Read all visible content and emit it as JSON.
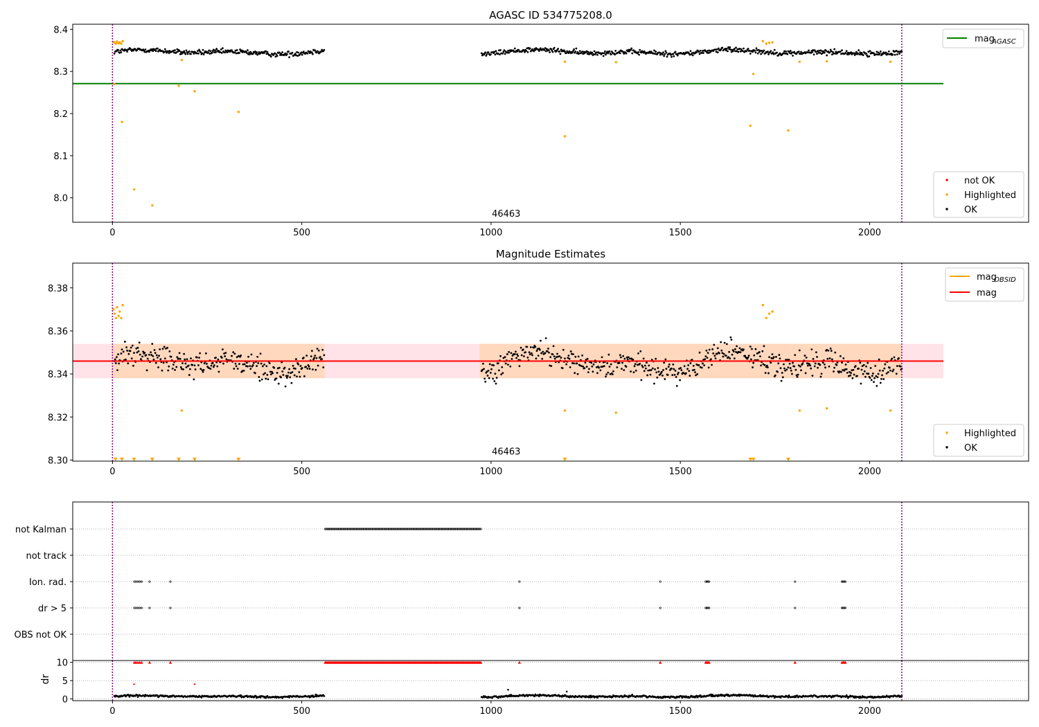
{
  "chart_data": [
    {
      "type": "scatter",
      "title": "AGASC ID 534775208.0",
      "xlim": [
        -105,
        2420
      ],
      "ylim": [
        7.942,
        8.412
      ],
      "x_ticks": [
        0,
        500,
        1000,
        1500,
        2000
      ],
      "y_ticks": [
        8.0,
        8.1,
        8.2,
        8.3,
        8.4
      ],
      "y_tick_labels": [
        "8.0",
        "8.1",
        "8.2",
        "8.3",
        "8.4"
      ],
      "vlines": [
        0,
        2085
      ],
      "mag_agasc": 8.271,
      "mag_agasc_line_x": [
        -105,
        2195
      ],
      "annotation": "46463",
      "annotation_xy": [
        1040,
        7.955
      ],
      "legend_lines": [
        {
          "label": "mag",
          "sub": "AGASC",
          "color": "#008000"
        }
      ],
      "legend_markers": [
        {
          "label": "not OK",
          "color": "#ff0000"
        },
        {
          "label": "Highlighted",
          "color": "#ffa500"
        },
        {
          "label": "OK",
          "color": "#000000"
        }
      ],
      "ok_segments": [
        {
          "x": [
            5,
            560
          ],
          "center": 8.346,
          "spread": 0.008,
          "wave": 0.006
        },
        {
          "x": [
            975,
            2085
          ],
          "center": 8.346,
          "spread": 0.008,
          "wave": 0.006
        }
      ],
      "highlighted": [
        [
          3,
          8.37
        ],
        [
          6,
          8.368
        ],
        [
          9,
          8.366
        ],
        [
          12,
          8.371
        ],
        [
          16,
          8.367
        ],
        [
          19,
          8.369
        ],
        [
          23,
          8.366
        ],
        [
          27,
          8.372
        ],
        [
          5,
          8.27
        ],
        [
          25,
          8.18
        ],
        [
          57,
          8.02
        ],
        [
          105,
          7.982
        ],
        [
          175,
          8.266
        ],
        [
          183,
          8.327
        ],
        [
          217,
          8.253
        ],
        [
          333,
          8.204
        ],
        [
          1195,
          8.146
        ],
        [
          1195,
          8.323
        ],
        [
          1330,
          8.322
        ],
        [
          1685,
          8.171
        ],
        [
          1693,
          8.294
        ],
        [
          1718,
          8.372
        ],
        [
          1727,
          8.366
        ],
        [
          1735,
          8.368
        ],
        [
          1743,
          8.369
        ],
        [
          1785,
          8.16
        ],
        [
          1815,
          8.323
        ],
        [
          1887,
          8.324
        ],
        [
          2055,
          8.323
        ]
      ],
      "not_ok": []
    },
    {
      "type": "scatter",
      "title": "Magnitude Estimates",
      "xlim": [
        -105,
        2420
      ],
      "ylim": [
        8.2995,
        8.3915
      ],
      "x_ticks": [
        0,
        500,
        1000,
        1500,
        2000
      ],
      "y_ticks": [
        8.3,
        8.32,
        8.34,
        8.36,
        8.38
      ],
      "y_tick_labels": [
        "8.30",
        "8.32",
        "8.34",
        "8.36",
        "8.38"
      ],
      "vlines": [
        0,
        2085
      ],
      "mag": 8.346,
      "mag_band_red": [
        8.338,
        8.354
      ],
      "mag_obsid": 8.346,
      "mag_obsid_band": [
        8.338,
        8.354
      ],
      "band_x": [
        -105,
        2195
      ],
      "annotation": "46463",
      "annotation_xy": [
        1040,
        8.3025
      ],
      "legend_lines": [
        {
          "label": "mag",
          "sub": "OBSID",
          "color": "#ffa500"
        },
        {
          "label": "mag",
          "sub": "",
          "color": "#ff0000"
        }
      ],
      "legend_markers": [
        {
          "label": "Highlighted",
          "color": "#ffa500"
        },
        {
          "label": "OK",
          "color": "#000000"
        }
      ],
      "ok_segments": [
        {
          "x": [
            5,
            560
          ],
          "center": 8.345,
          "spread": 0.0075,
          "wave": 0.006
        },
        {
          "x": [
            975,
            2085
          ],
          "center": 8.345,
          "spread": 0.0075,
          "wave": 0.006
        }
      ],
      "highlighted": [
        [
          3,
          8.37
        ],
        [
          6,
          8.368
        ],
        [
          9,
          8.366
        ],
        [
          12,
          8.371
        ],
        [
          16,
          8.367
        ],
        [
          19,
          8.369
        ],
        [
          23,
          8.366
        ],
        [
          27,
          8.372
        ],
        [
          183,
          8.323
        ],
        [
          1195,
          8.323
        ],
        [
          1330,
          8.322
        ],
        [
          1718,
          8.372
        ],
        [
          1727,
          8.366
        ],
        [
          1735,
          8.368
        ],
        [
          1743,
          8.369
        ],
        [
          1815,
          8.323
        ],
        [
          1887,
          8.324
        ],
        [
          2055,
          8.323
        ]
      ],
      "off_scale_below": [
        8,
        25,
        57,
        105,
        175,
        217,
        333,
        1195,
        1685,
        1693,
        1785
      ]
    },
    {
      "type": "scatter",
      "title": "",
      "xlim": [
        -105,
        2420
      ],
      "categories": [
        "not Kalman",
        "not track",
        "Ion. rad.",
        "dr > 5",
        "OBS not OK"
      ],
      "vlines": [
        0,
        2085
      ],
      "flags": {
        "not Kalman": {
          "ranges": [
            [
              562,
              975
            ]
          ],
          "points": []
        },
        "not track": {
          "ranges": [],
          "points": []
        },
        "Ion. rad.": {
          "ranges": [
            [
              1567,
              1578
            ],
            [
              1927,
              1936
            ]
          ],
          "points": [
            58,
            62,
            67,
            72,
            77,
            98,
            153,
            1075,
            1447,
            1803
          ]
        },
        "dr > 5": {
          "ranges": [
            [
              1567,
              1578
            ],
            [
              1927,
              1936
            ]
          ],
          "points": [
            58,
            62,
            67,
            72,
            77,
            98,
            153,
            1075,
            1447,
            1803
          ]
        },
        "OBS not OK": {
          "ranges": [],
          "points": []
        }
      }
    },
    {
      "type": "scatter",
      "title": "",
      "ylabel": "dr",
      "xlim": [
        -105,
        2420
      ],
      "ylim": [
        -0.5,
        10.5
      ],
      "x_ticks": [
        0,
        500,
        1000,
        1500,
        2000
      ],
      "y_ticks": [
        0,
        5,
        10
      ],
      "y_tick_labels": [
        "0",
        "5",
        "10"
      ],
      "vlines": [
        0,
        2085
      ],
      "ok_segments": [
        {
          "x": [
            5,
            560
          ],
          "center": 0.7,
          "spread": 0.35,
          "wave": 0.25
        },
        {
          "x": [
            975,
            2085
          ],
          "center": 0.7,
          "spread": 0.35,
          "wave": 0.3
        }
      ],
      "outliers": [
        [
          1200,
          2.0
        ],
        [
          1045,
          2.5
        ]
      ],
      "capped_10": {
        "ranges": [
          [
            562,
            975
          ],
          [
            1567,
            1578
          ],
          [
            1927,
            1936
          ]
        ],
        "points": [
          58,
          62,
          67,
          72,
          77,
          98,
          153,
          1075,
          1447,
          1803
        ]
      },
      "red_points": [
        [
          57,
          4.0
        ],
        [
          217,
          4.0
        ]
      ]
    }
  ]
}
